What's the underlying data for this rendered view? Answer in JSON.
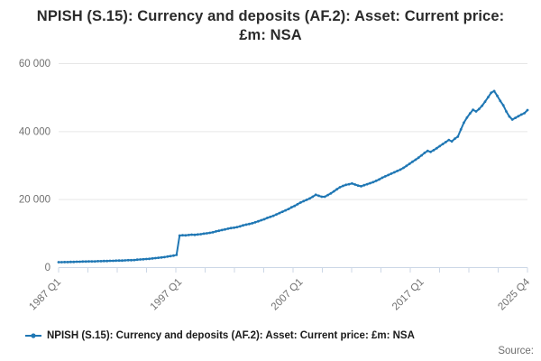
{
  "title": "NPISH (S.15): Currency and deposits (AF.2): Asset: Current price: £m: NSA",
  "legend": {
    "label": "NPISH (S.15): Currency and deposits (AF.2): Asset: Current price: £m: NSA"
  },
  "source_label": "Source:",
  "colors": {
    "series": "#1f77b4",
    "gridline": "#e6e6e6",
    "axis": "#ccd7e6",
    "tick_text": "#707070"
  },
  "chart_data": {
    "type": "line",
    "title": "NPISH (S.15): Currency and deposits (AF.2): Asset: Current price: £m: NSA",
    "xlabel": "",
    "ylabel": "",
    "x_unit": "quarter",
    "x_range": [
      "1987 Q1",
      "2025 Q4"
    ],
    "ylim": [
      0,
      60000
    ],
    "grid": "horizontal",
    "legend_position": "bottom",
    "y_ticks": [
      {
        "value": 0,
        "label": "0"
      },
      {
        "value": 20000,
        "label": "20 000"
      },
      {
        "value": 40000,
        "label": "40 000"
      },
      {
        "value": 60000,
        "label": "60 000"
      }
    ],
    "x_ticks": [
      {
        "quarter_index": 0,
        "label": "1987 Q1"
      },
      {
        "quarter_index": 40,
        "label": "1997 Q1"
      },
      {
        "quarter_index": 80,
        "label": "2007 Q1"
      },
      {
        "quarter_index": 120,
        "label": "2017 Q1"
      },
      {
        "quarter_index": 155,
        "label": "2025 Q4"
      }
    ],
    "minor_tick_count": 17,
    "series": [
      {
        "name": "NPISH (S.15): Currency and deposits (AF.2): Asset: Current price: £m: NSA",
        "start": "1987 Q1",
        "frequency": "quarterly",
        "values": [
          1450,
          1450,
          1500,
          1500,
          1550,
          1550,
          1600,
          1600,
          1650,
          1650,
          1700,
          1700,
          1700,
          1750,
          1750,
          1800,
          1800,
          1850,
          1850,
          1900,
          1950,
          1950,
          2000,
          2050,
          2050,
          2100,
          2200,
          2250,
          2300,
          2400,
          2450,
          2550,
          2650,
          2750,
          2850,
          2950,
          3100,
          3250,
          3400,
          3600,
          9300,
          9400,
          9350,
          9450,
          9550,
          9500,
          9600,
          9700,
          9850,
          9950,
          10100,
          10250,
          10500,
          10700,
          10900,
          11100,
          11300,
          11500,
          11600,
          11800,
          12000,
          12300,
          12500,
          12700,
          12900,
          13200,
          13500,
          13800,
          14100,
          14500,
          14800,
          15100,
          15500,
          15900,
          16300,
          16700,
          17100,
          17600,
          18000,
          18500,
          19000,
          19400,
          19800,
          20200,
          20700,
          21300,
          21000,
          20700,
          20700,
          21200,
          21700,
          22300,
          22900,
          23500,
          23900,
          24200,
          24400,
          24600,
          24300,
          24000,
          23800,
          24100,
          24400,
          24700,
          25000,
          25400,
          25800,
          26300,
          26700,
          27100,
          27500,
          27900,
          28300,
          28700,
          29200,
          29800,
          30400,
          31000,
          31600,
          32200,
          32900,
          33600,
          34200,
          33900,
          34400,
          35000,
          35600,
          36200,
          36800,
          37400,
          37000,
          37800,
          38400,
          40500,
          42500,
          44000,
          45200,
          46300,
          45800,
          46500,
          47500,
          48700,
          50000,
          51300,
          51800,
          50400,
          48900,
          47600,
          45800,
          44300,
          43400,
          43900,
          44400,
          44900,
          45300,
          46200
        ]
      }
    ]
  }
}
